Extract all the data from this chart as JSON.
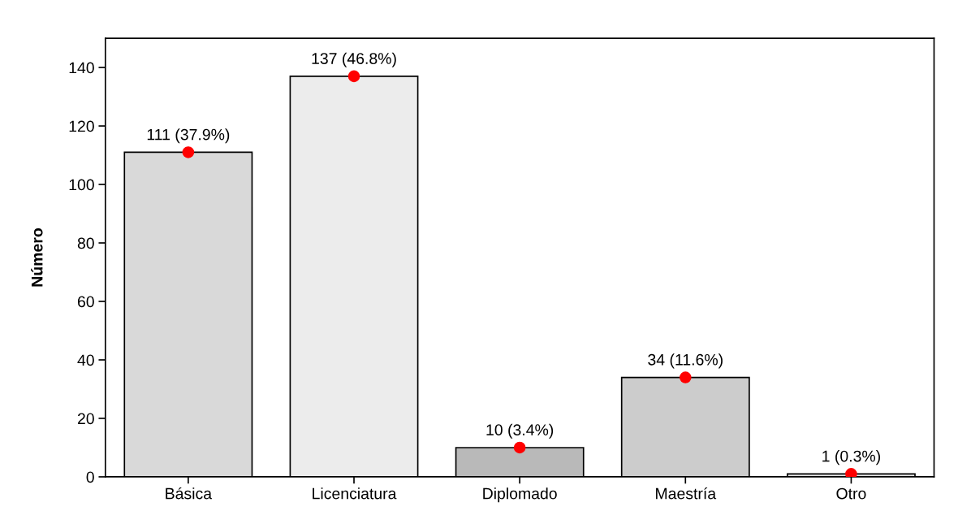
{
  "chart_data": {
    "type": "bar",
    "ylabel": "Número",
    "categories": [
      "Básica",
      "Licenciatura",
      "Diplomado",
      "Maestría",
      "Otro"
    ],
    "series": [
      {
        "colors": [
          "#d9d9d9",
          "#ececec",
          "#b9b9b9",
          "#cccccc",
          "#e4e4e4"
        ],
        "values": [
          111,
          137,
          10,
          34,
          1
        ],
        "value_labels": [
          "111 (37.9%)",
          "137 (46.8%)",
          "10 (3.4%)",
          "34 (11.6%)",
          "1 (0.3%)"
        ]
      },
      {
        "type": "scatter",
        "color": "#ff0000",
        "x": [
          "Básica",
          "Licenciatura",
          "Diplomado",
          "Maestría",
          "Otro"
        ],
        "values": [
          111,
          137,
          10,
          34,
          1
        ]
      }
    ],
    "ylim": [
      0,
      150
    ],
    "yticks": [
      0,
      20,
      40,
      60,
      80,
      100,
      120,
      140
    ],
    "grid": false,
    "legend": false,
    "marker": "circle"
  }
}
